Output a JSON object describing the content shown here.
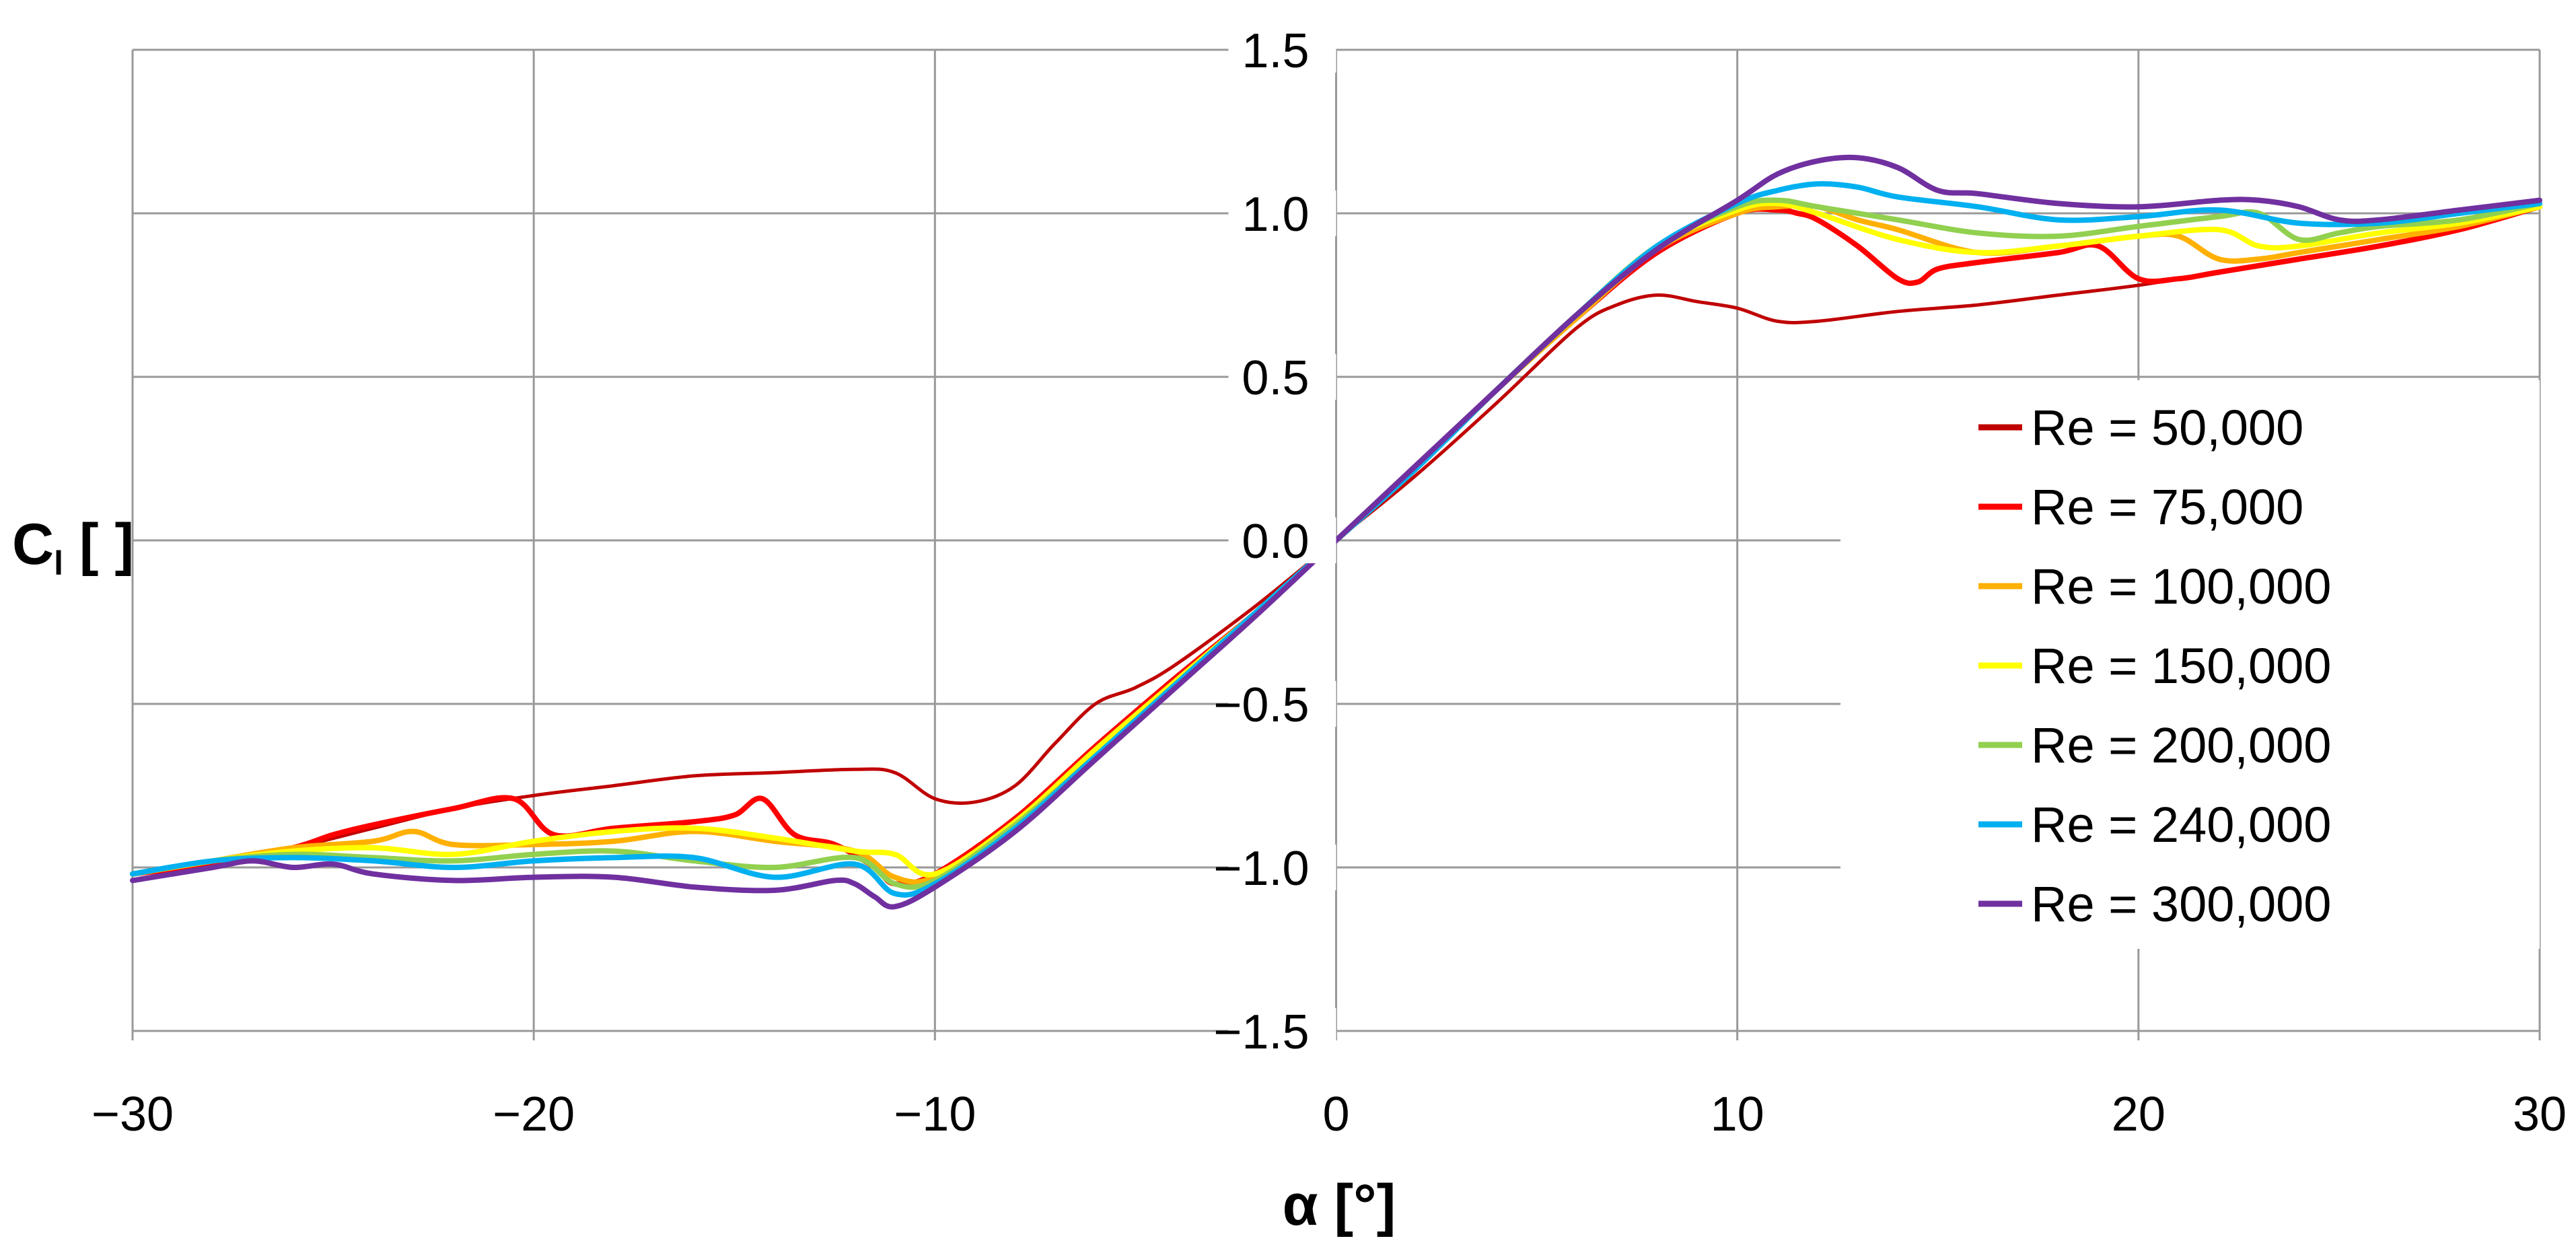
{
  "chart_data": {
    "type": "line",
    "title": "",
    "xlabel": "α [°]",
    "ylabel": "C",
    "ylabel_sub": "l",
    "ylabel_unit": " [ ]",
    "xlim": [
      -30,
      30
    ],
    "ylim": [
      -1.5,
      1.5
    ],
    "xticks": [
      -30,
      -20,
      -10,
      0,
      10,
      20,
      30
    ],
    "xtick_labels": [
      "−30",
      "−20",
      "−10",
      "0",
      "10",
      "20",
      "30"
    ],
    "yticks": [
      1.5,
      1.0,
      0.5,
      0.0,
      -0.5,
      -1.0,
      -1.5
    ],
    "ytick_labels": [
      "1.5",
      "1.0",
      "0.5",
      "0.0",
      "−0.5",
      "−1.0",
      "−1.5"
    ],
    "grid": true,
    "legend_position": "right",
    "series": [
      {
        "name": "Re = 50,000",
        "color": "#c00000",
        "width": 5,
        "x": [
          -30,
          -28,
          -26,
          -24,
          -22,
          -20,
          -18,
          -16,
          -14,
          -12,
          -11,
          -10,
          -9,
          -8,
          -7,
          -6,
          -5,
          -4,
          -2,
          0,
          2,
          4,
          6,
          7,
          8,
          9,
          10,
          11,
          12,
          14,
          16,
          18,
          20,
          22,
          24,
          26,
          28,
          30
        ],
        "y": [
          -1.02,
          -0.98,
          -0.94,
          -0.88,
          -0.82,
          -0.78,
          -0.75,
          -0.72,
          -0.71,
          -0.7,
          -0.71,
          -0.79,
          -0.8,
          -0.75,
          -0.62,
          -0.5,
          -0.45,
          -0.38,
          -0.2,
          0.0,
          0.2,
          0.42,
          0.65,
          0.72,
          0.75,
          0.73,
          0.71,
          0.67,
          0.67,
          0.7,
          0.72,
          0.75,
          0.78,
          0.82,
          0.86,
          0.9,
          0.95,
          1.02
        ]
      },
      {
        "name": "Re = 75,000",
        "color": "#ff0000",
        "width": 8,
        "x": [
          -30,
          -28,
          -26,
          -25,
          -24,
          -22,
          -20.5,
          -19.5,
          -18,
          -16,
          -15,
          -14.3,
          -13.5,
          -12.5,
          -11.5,
          -11,
          -10,
          -8,
          -6,
          -4,
          -2,
          0,
          2,
          4,
          6,
          8,
          10,
          11,
          11.5,
          12,
          13,
          14,
          14.5,
          15,
          16,
          18,
          19,
          20,
          21,
          22,
          24,
          26,
          28,
          30
        ],
        "y": [
          -1.02,
          -0.99,
          -0.94,
          -0.9,
          -0.87,
          -0.82,
          -0.79,
          -0.9,
          -0.88,
          -0.86,
          -0.84,
          -0.79,
          -0.9,
          -0.93,
          -1.0,
          -1.05,
          -1.02,
          -0.85,
          -0.63,
          -0.42,
          -0.22,
          0.0,
          0.22,
          0.46,
          0.68,
          0.88,
          1.0,
          1.01,
          1.0,
          0.98,
          0.9,
          0.8,
          0.79,
          0.83,
          0.85,
          0.88,
          0.9,
          0.8,
          0.8,
          0.82,
          0.86,
          0.9,
          0.95,
          1.02
        ]
      },
      {
        "name": "Re = 100,000",
        "color": "#ffb000",
        "width": 8,
        "x": [
          -30,
          -28,
          -26,
          -24,
          -23,
          -22,
          -20,
          -18,
          -16,
          -14,
          -12,
          -11,
          -10,
          -8,
          -6,
          -4,
          -2,
          0,
          2,
          4,
          6,
          8,
          10,
          11,
          12,
          13,
          14,
          16,
          18,
          20,
          21,
          22,
          23,
          24,
          26,
          28,
          30
        ],
        "y": [
          -1.02,
          -0.98,
          -0.94,
          -0.92,
          -0.89,
          -0.93,
          -0.93,
          -0.92,
          -0.89,
          -0.92,
          -0.95,
          -1.03,
          -1.03,
          -0.88,
          -0.67,
          -0.44,
          -0.22,
          0.0,
          0.22,
          0.46,
          0.68,
          0.89,
          1.0,
          1.02,
          1.02,
          0.98,
          0.95,
          0.88,
          0.9,
          0.93,
          0.93,
          0.86,
          0.86,
          0.88,
          0.92,
          0.96,
          1.02
        ]
      },
      {
        "name": "Re = 150,000",
        "color": "#ffff00",
        "width": 8,
        "x": [
          -30,
          -28,
          -26,
          -24,
          -22,
          -20,
          -18,
          -16,
          -14,
          -12,
          -11,
          -10,
          -8,
          -6,
          -4,
          -2,
          0,
          2,
          4,
          6,
          8,
          10,
          11,
          12,
          14,
          16,
          18,
          20,
          22,
          23,
          24,
          26,
          28,
          30
        ],
        "y": [
          -1.02,
          -0.98,
          -0.95,
          -0.94,
          -0.96,
          -0.92,
          -0.89,
          -0.88,
          -0.91,
          -0.95,
          -0.96,
          -1.02,
          -0.86,
          -0.64,
          -0.43,
          -0.22,
          0.0,
          0.22,
          0.46,
          0.69,
          0.9,
          1.01,
          1.03,
          1.0,
          0.92,
          0.88,
          0.9,
          0.93,
          0.95,
          0.9,
          0.9,
          0.94,
          0.97,
          1.02
        ]
      },
      {
        "name": "Re = 200,000",
        "color": "#92d050",
        "width": 8,
        "x": [
          -30,
          -28,
          -26,
          -24,
          -22,
          -20,
          -18,
          -16,
          -14,
          -12,
          -11,
          -10,
          -8,
          -6,
          -4,
          -2,
          0,
          2,
          4,
          6,
          8,
          10,
          11,
          12,
          14,
          16,
          18,
          20,
          22,
          23,
          24,
          25,
          26,
          28,
          30
        ],
        "y": [
          -1.02,
          -0.98,
          -0.96,
          -0.97,
          -0.98,
          -0.96,
          -0.95,
          -0.98,
          -1.0,
          -0.97,
          -1.05,
          -1.04,
          -0.87,
          -0.66,
          -0.44,
          -0.22,
          0.0,
          0.22,
          0.46,
          0.69,
          0.9,
          1.02,
          1.04,
          1.02,
          0.98,
          0.94,
          0.93,
          0.96,
          0.99,
          1.0,
          0.92,
          0.94,
          0.96,
          0.98,
          1.03
        ]
      },
      {
        "name": "Re = 240,000",
        "color": "#00b0f0",
        "width": 8,
        "x": [
          -30,
          -28,
          -26,
          -24,
          -22,
          -20,
          -18,
          -16,
          -14,
          -12,
          -11,
          -10,
          -8,
          -6,
          -4,
          -2,
          0,
          2,
          4,
          6,
          8,
          10,
          11,
          12,
          13,
          14,
          16,
          18,
          20,
          22,
          24,
          26,
          28,
          30
        ],
        "y": [
          -1.02,
          -0.98,
          -0.97,
          -0.98,
          -1.0,
          -0.98,
          -0.97,
          -0.97,
          -1.03,
          -0.99,
          -1.08,
          -1.05,
          -0.88,
          -0.66,
          -0.44,
          -0.22,
          0.0,
          0.22,
          0.46,
          0.69,
          0.9,
          1.03,
          1.07,
          1.09,
          1.08,
          1.05,
          1.02,
          0.98,
          0.99,
          1.01,
          0.97,
          0.97,
          1.0,
          1.03
        ]
      },
      {
        "name": "Re = 300,000",
        "color": "#7030a0",
        "width": 8,
        "x": [
          -30,
          -28,
          -27,
          -26,
          -25,
          -24,
          -22,
          -20,
          -18,
          -16,
          -14,
          -12.5,
          -12,
          -11.5,
          -11,
          -10,
          -8,
          -6,
          -4,
          -2,
          0,
          2,
          4,
          6,
          8,
          10,
          11,
          12,
          13,
          14,
          15,
          16,
          18,
          20,
          22,
          23,
          24,
          25,
          26,
          28,
          30
        ],
        "y": [
          -1.04,
          -1.0,
          -0.98,
          -1.0,
          -0.99,
          -1.02,
          -1.04,
          -1.03,
          -1.03,
          -1.06,
          -1.07,
          -1.04,
          -1.05,
          -1.09,
          -1.12,
          -1.06,
          -0.89,
          -0.67,
          -0.45,
          -0.23,
          0.0,
          0.23,
          0.46,
          0.69,
          0.89,
          1.04,
          1.12,
          1.16,
          1.17,
          1.14,
          1.07,
          1.06,
          1.03,
          1.02,
          1.04,
          1.04,
          1.02,
          0.98,
          0.98,
          1.01,
          1.04
        ]
      }
    ]
  }
}
